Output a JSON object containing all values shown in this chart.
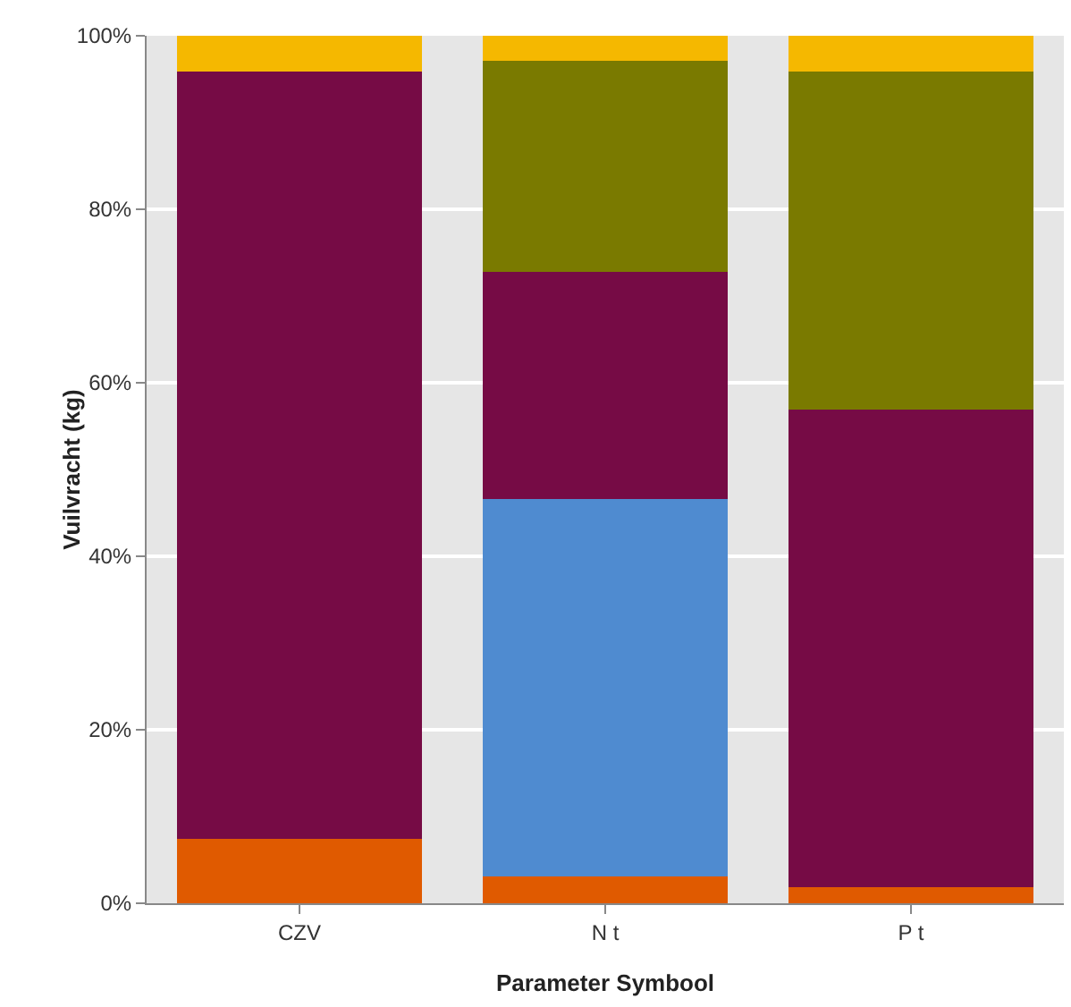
{
  "chart_data": {
    "type": "bar",
    "stacked": true,
    "xlabel": "Parameter Symbool",
    "ylabel": "Vuilvracht (kg)",
    "categories": [
      "CZV",
      "N t",
      "P t"
    ],
    "series": [
      {
        "color": "#e05a00",
        "values": [
          7.4,
          3.1,
          1.9
        ]
      },
      {
        "color": "#4f8bd0",
        "values": [
          0,
          43.5,
          0
        ]
      },
      {
        "color": "#760b45",
        "values": [
          88.5,
          26.2,
          55.0
        ]
      },
      {
        "color": "#7a7a00",
        "values": [
          0,
          24.3,
          39.0
        ]
      },
      {
        "color": "#f5b800",
        "values": [
          4.1,
          2.9,
          4.1
        ]
      }
    ],
    "ylim": [
      0,
      100
    ],
    "yticks": [
      {
        "value": 0,
        "label": "0%"
      },
      {
        "value": 20,
        "label": "20%"
      },
      {
        "value": 40,
        "label": "40%"
      },
      {
        "value": 60,
        "label": "60%"
      },
      {
        "value": 80,
        "label": "80%"
      },
      {
        "value": 100,
        "label": "100%"
      }
    ],
    "grid": "y"
  }
}
